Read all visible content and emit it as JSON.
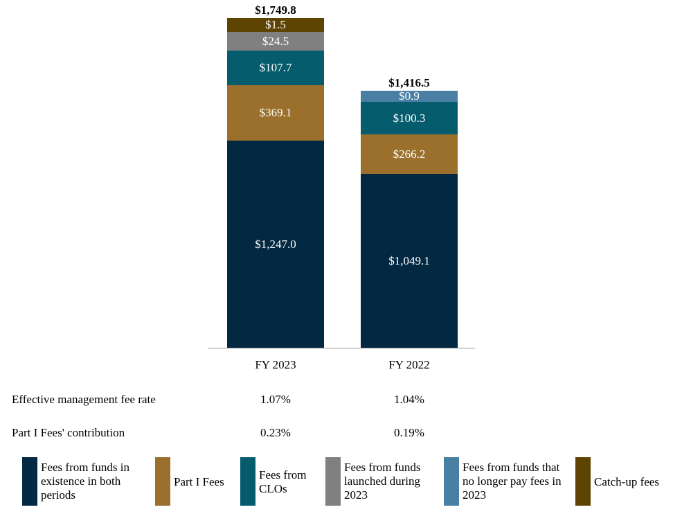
{
  "chart_data": {
    "type": "stacked-bar",
    "categories": [
      "FY 2023",
      "FY 2022"
    ],
    "totals": [
      "$1,749.8",
      "$1,416.5"
    ],
    "series": [
      {
        "name": "Fees from funds in existence in both periods",
        "color": "#022842",
        "values": [
          1247.0,
          1049.1
        ],
        "labels": [
          "$1,247.0",
          "$1,049.1"
        ]
      },
      {
        "name": "Part I Fees",
        "color": "#9a702c",
        "values": [
          369.1,
          266.2
        ],
        "labels": [
          "$369.1",
          "$266.2"
        ]
      },
      {
        "name": "Fees from CLOs",
        "color": "#055c6c",
        "values": [
          107.7,
          100.3
        ],
        "labels": [
          "$107.7",
          "$100.3"
        ]
      },
      {
        "name": "Fees from funds launched during 2023",
        "color": "#808080",
        "values": [
          24.5,
          null
        ],
        "labels": [
          "$24.5",
          ""
        ]
      },
      {
        "name": "Fees from funds that no longer pay fees in 2023",
        "color": "#4a7fa5",
        "values": [
          null,
          0.9
        ],
        "labels": [
          "",
          "$0.9"
        ]
      },
      {
        "name": "Catch-up fees",
        "color": "#5e4403",
        "values": [
          1.5,
          null
        ],
        "labels": [
          "$1.5",
          ""
        ]
      }
    ],
    "legend_position": "bottom",
    "grid": false
  },
  "table": {
    "rows": [
      {
        "label": "Effective management fee rate",
        "values": [
          "1.07%",
          "1.04%"
        ]
      },
      {
        "label": "Part I Fees' contribution",
        "values": [
          "0.23%",
          "0.19%"
        ]
      }
    ]
  },
  "legend": [
    "Fees from funds in existence in both periods",
    "Part I Fees",
    "Fees from CLOs",
    "Fees from funds launched during 2023",
    "Fees from funds that no longer pay fees in 2023",
    "Catch-up fees"
  ]
}
